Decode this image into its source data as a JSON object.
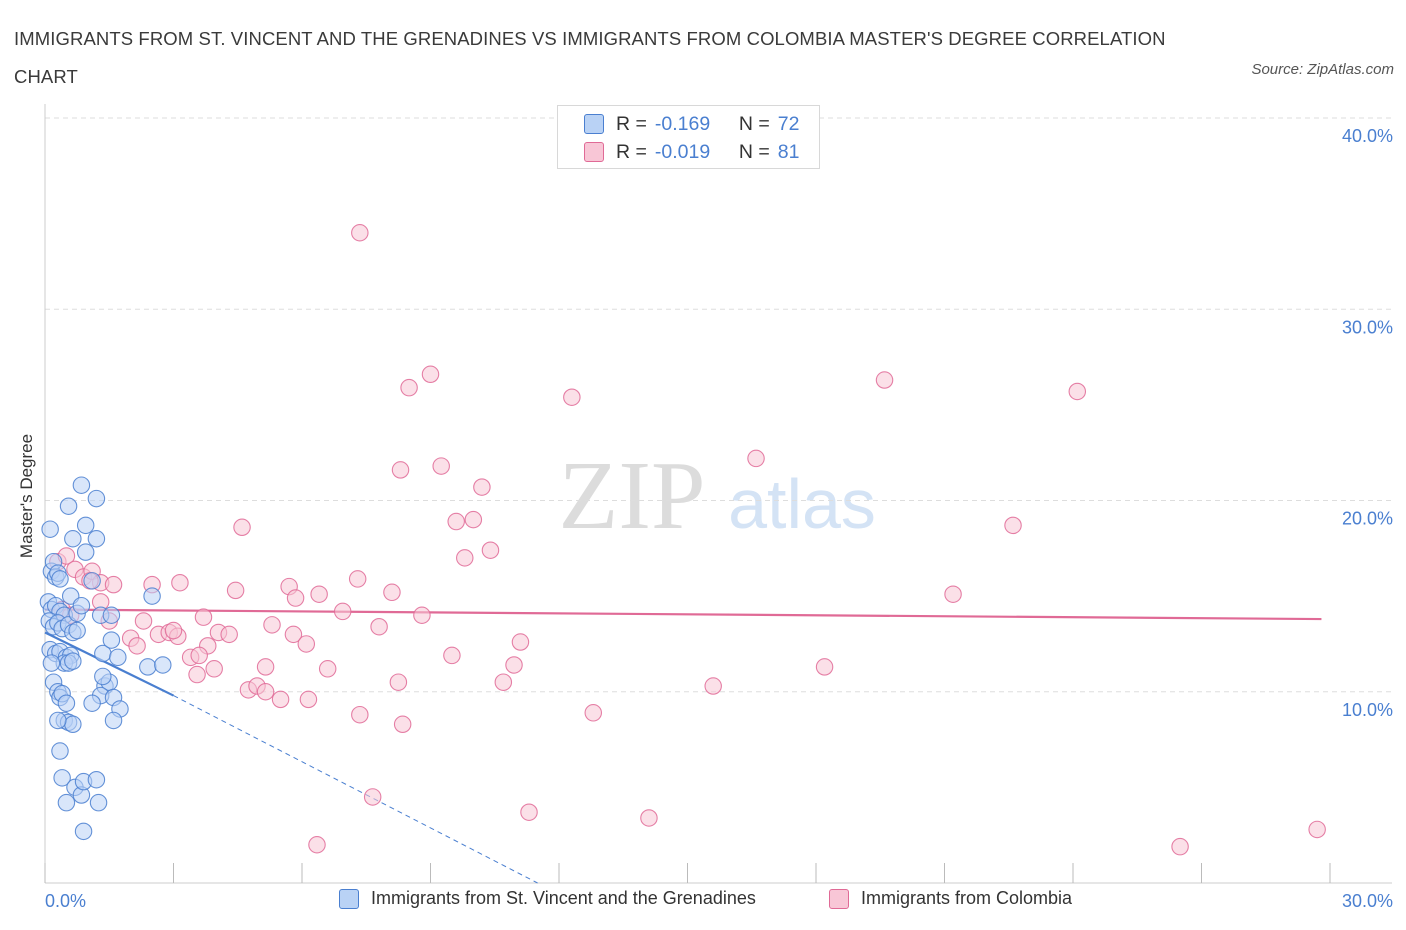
{
  "title": "IMMIGRANTS FROM ST. VINCENT AND THE GRENADINES VS IMMIGRANTS FROM COLOMBIA MASTER'S DEGREE CORRELATION CHART",
  "source": "Source: ZipAtlas.com",
  "watermark": {
    "zip": "ZIP",
    "atlas": "atlas"
  },
  "colors": {
    "blue": "#4a7fd0",
    "blue_fill": "#b9d2f5",
    "pink": "#e06a96",
    "pink_fill": "#f8c6d6",
    "grid": "#dddddd",
    "tick_label": "#4a7fd0"
  },
  "legend": {
    "rows": [
      {
        "r_label": "R =",
        "r_value": "-0.169",
        "n_label": "N =",
        "n_value": "72"
      },
      {
        "r_label": "R =",
        "r_value": "-0.019",
        "n_label": "N =",
        "n_value": "81"
      }
    ]
  },
  "chart_data": {
    "type": "scatter",
    "xlabel": "",
    "ylabel": "Master's Degree",
    "xlim": [
      0,
      30
    ],
    "ylim": [
      0,
      40
    ],
    "x_tick_labels": [
      "0.0%",
      "30.0%"
    ],
    "y_tick_labels": [
      "10.0%",
      "20.0%",
      "30.0%",
      "40.0%"
    ],
    "y_ticks": [
      10,
      20,
      30,
      40
    ],
    "grid": true,
    "legend_placement": "top-center",
    "series": [
      {
        "name": "Immigrants from St. Vincent and the Grenadines",
        "color": "#4a7fd0",
        "trend": {
          "x": [
            0.0,
            3.0
          ],
          "y": [
            13.1,
            9.8
          ],
          "dashed_extension": {
            "x": [
              3.0,
              11.5
            ],
            "y": [
              9.8,
              0.0
            ]
          }
        },
        "points": [
          [
            0.12,
            18.5
          ],
          [
            0.15,
            16.3
          ],
          [
            0.2,
            16.8
          ],
          [
            0.25,
            16.0
          ],
          [
            0.3,
            16.2
          ],
          [
            0.35,
            15.9
          ],
          [
            0.08,
            14.7
          ],
          [
            0.15,
            14.3
          ],
          [
            0.25,
            14.5
          ],
          [
            0.35,
            14.2
          ],
          [
            0.45,
            14.0
          ],
          [
            0.1,
            13.7
          ],
          [
            0.2,
            13.4
          ],
          [
            0.3,
            13.6
          ],
          [
            0.4,
            13.3
          ],
          [
            0.55,
            13.5
          ],
          [
            0.65,
            13.1
          ],
          [
            0.75,
            13.2
          ],
          [
            0.12,
            12.2
          ],
          [
            0.25,
            12.0
          ],
          [
            0.35,
            12.1
          ],
          [
            0.5,
            11.8
          ],
          [
            0.6,
            11.9
          ],
          [
            0.45,
            11.5
          ],
          [
            0.55,
            11.5
          ],
          [
            0.65,
            11.6
          ],
          [
            0.15,
            11.5
          ],
          [
            0.2,
            10.5
          ],
          [
            0.3,
            10.0
          ],
          [
            0.35,
            9.7
          ],
          [
            0.4,
            9.9
          ],
          [
            0.5,
            9.4
          ],
          [
            0.45,
            8.5
          ],
          [
            0.55,
            8.4
          ],
          [
            0.65,
            8.3
          ],
          [
            0.3,
            8.5
          ],
          [
            0.35,
            6.9
          ],
          [
            0.4,
            5.5
          ],
          [
            0.5,
            4.2
          ],
          [
            0.7,
            5.0
          ],
          [
            0.85,
            4.6
          ],
          [
            0.9,
            5.3
          ],
          [
            1.2,
            5.4
          ],
          [
            1.25,
            4.2
          ],
          [
            0.9,
            2.7
          ],
          [
            0.55,
            19.7
          ],
          [
            0.85,
            20.8
          ],
          [
            1.2,
            20.1
          ],
          [
            0.95,
            18.7
          ],
          [
            0.65,
            18.0
          ],
          [
            0.95,
            17.3
          ],
          [
            1.2,
            18.0
          ],
          [
            1.1,
            15.8
          ],
          [
            0.6,
            15.0
          ],
          [
            0.75,
            14.1
          ],
          [
            1.3,
            14.0
          ],
          [
            1.55,
            14.0
          ],
          [
            1.35,
            12.0
          ],
          [
            1.55,
            12.7
          ],
          [
            1.7,
            11.8
          ],
          [
            1.4,
            10.3
          ],
          [
            1.5,
            10.5
          ],
          [
            1.3,
            9.8
          ],
          [
            1.6,
            9.7
          ],
          [
            1.75,
            9.1
          ],
          [
            1.6,
            8.5
          ],
          [
            1.1,
            9.4
          ],
          [
            2.5,
            15.0
          ],
          [
            2.4,
            11.3
          ],
          [
            2.75,
            11.4
          ],
          [
            1.35,
            10.8
          ],
          [
            0.85,
            14.5
          ]
        ]
      },
      {
        "name": "Immigrants from Colombia",
        "color": "#e06a96",
        "trend": {
          "x": [
            0.0,
            29.8
          ],
          "y": [
            14.3,
            13.8
          ]
        },
        "points": [
          [
            7.35,
            34.0
          ],
          [
            9.0,
            26.6
          ],
          [
            8.5,
            25.9
          ],
          [
            12.3,
            25.4
          ],
          [
            19.6,
            26.3
          ],
          [
            24.1,
            25.7
          ],
          [
            8.3,
            21.6
          ],
          [
            9.25,
            21.8
          ],
          [
            10.2,
            20.7
          ],
          [
            16.6,
            22.2
          ],
          [
            4.6,
            18.6
          ],
          [
            9.6,
            18.9
          ],
          [
            10.0,
            19.0
          ],
          [
            22.6,
            18.7
          ],
          [
            10.4,
            17.4
          ],
          [
            9.8,
            17.0
          ],
          [
            0.3,
            16.8
          ],
          [
            0.5,
            17.1
          ],
          [
            0.7,
            16.4
          ],
          [
            0.9,
            16.0
          ],
          [
            1.1,
            16.3
          ],
          [
            1.3,
            15.7
          ],
          [
            1.6,
            15.6
          ],
          [
            1.05,
            15.8
          ],
          [
            2.5,
            15.6
          ],
          [
            3.15,
            15.7
          ],
          [
            4.45,
            15.3
          ],
          [
            5.7,
            15.5
          ],
          [
            6.4,
            15.1
          ],
          [
            7.3,
            15.9
          ],
          [
            8.1,
            15.2
          ],
          [
            5.85,
            14.9
          ],
          [
            0.4,
            14.3
          ],
          [
            0.6,
            14.0
          ],
          [
            1.3,
            14.7
          ],
          [
            2.3,
            13.7
          ],
          [
            3.7,
            13.9
          ],
          [
            6.95,
            14.2
          ],
          [
            8.8,
            14.0
          ],
          [
            21.2,
            15.1
          ],
          [
            1.5,
            13.7
          ],
          [
            2.0,
            12.8
          ],
          [
            2.65,
            13.0
          ],
          [
            2.9,
            13.1
          ],
          [
            3.1,
            12.9
          ],
          [
            4.05,
            13.1
          ],
          [
            4.3,
            13.0
          ],
          [
            5.3,
            13.5
          ],
          [
            5.8,
            13.0
          ],
          [
            7.8,
            13.4
          ],
          [
            11.1,
            12.6
          ],
          [
            2.15,
            12.4
          ],
          [
            3.8,
            12.4
          ],
          [
            6.1,
            12.5
          ],
          [
            3.4,
            11.8
          ],
          [
            3.6,
            11.9
          ],
          [
            3.95,
            11.2
          ],
          [
            5.15,
            11.3
          ],
          [
            3.55,
            10.9
          ],
          [
            4.75,
            10.1
          ],
          [
            4.95,
            10.3
          ],
          [
            5.15,
            10.0
          ],
          [
            5.5,
            9.6
          ],
          [
            6.15,
            9.6
          ],
          [
            6.6,
            11.2
          ],
          [
            9.5,
            11.9
          ],
          [
            10.95,
            11.4
          ],
          [
            10.7,
            10.5
          ],
          [
            8.25,
            10.5
          ],
          [
            15.6,
            10.3
          ],
          [
            18.2,
            11.3
          ],
          [
            7.35,
            8.8
          ],
          [
            8.35,
            8.3
          ],
          [
            12.8,
            8.9
          ],
          [
            7.65,
            4.5
          ],
          [
            11.3,
            3.7
          ],
          [
            14.1,
            3.4
          ],
          [
            6.35,
            2.0
          ],
          [
            26.5,
            1.9
          ],
          [
            29.7,
            2.8
          ],
          [
            3.0,
            13.2
          ]
        ]
      }
    ]
  }
}
